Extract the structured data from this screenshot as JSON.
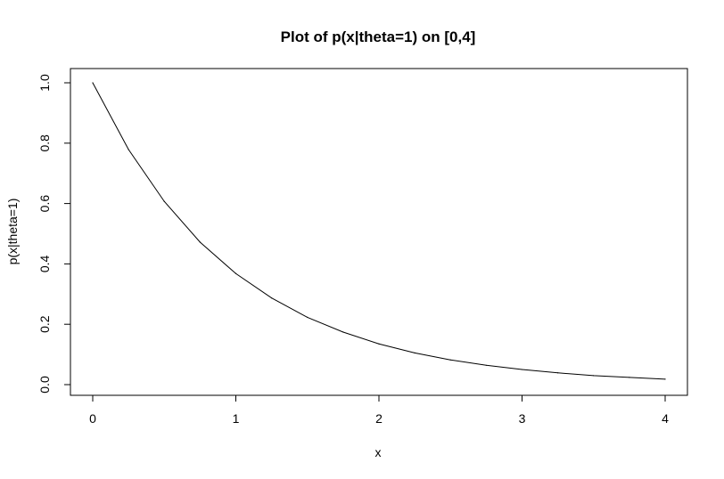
{
  "chart_data": {
    "type": "line",
    "title": "Plot of p(x|theta=1) on [0,4]",
    "xlabel": "x",
    "ylabel": "p(x|theta=1)",
    "xlim": [
      0,
      4
    ],
    "ylim": [
      0,
      1
    ],
    "x_ticks": [
      "0",
      "1",
      "2",
      "3",
      "4"
    ],
    "y_ticks": [
      "0.0",
      "0.2",
      "0.4",
      "0.6",
      "0.8",
      "1.0"
    ],
    "grid": false,
    "series": [
      {
        "color": "#000000",
        "x": [
          0,
          0.25,
          0.5,
          0.75,
          1,
          1.25,
          1.5,
          1.75,
          2,
          2.25,
          2.5,
          2.75,
          3,
          3.25,
          3.5,
          3.75,
          4
        ],
        "y": [
          1.0,
          0.779,
          0.607,
          0.472,
          0.368,
          0.287,
          0.223,
          0.174,
          0.135,
          0.105,
          0.082,
          0.064,
          0.05,
          0.039,
          0.03,
          0.024,
          0.018
        ]
      }
    ]
  }
}
